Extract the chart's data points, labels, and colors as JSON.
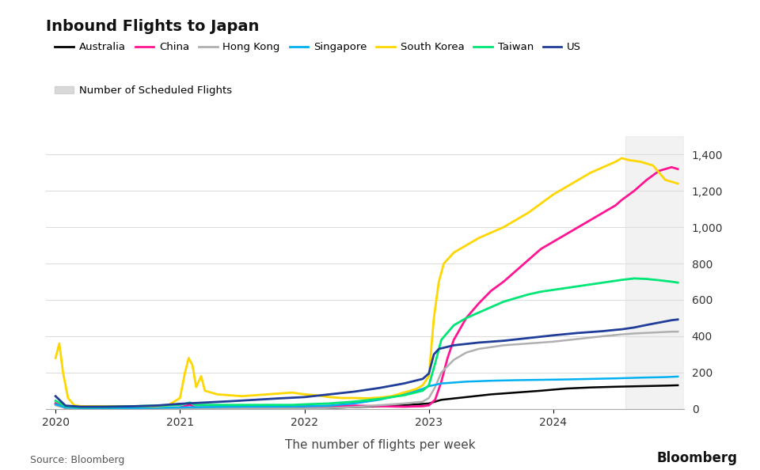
{
  "title": "Inbound Flights to Japan",
  "xlabel": "The number of flights per week",
  "ylim": [
    0,
    1500
  ],
  "yticks": [
    0,
    200,
    400,
    600,
    800,
    1000,
    1200,
    1400
  ],
  "background_color": "#ffffff",
  "shaded_region_start": 2024.58,
  "shaded_region_end": 2025.05,
  "xlim_start": 2019.92,
  "xlim_end": 2025.05,
  "series": {
    "Australia": {
      "color": "#000000",
      "lw": 1.8,
      "data": [
        [
          2020.0,
          30
        ],
        [
          2020.08,
          5
        ],
        [
          2020.15,
          2
        ],
        [
          2020.3,
          2
        ],
        [
          2020.5,
          2
        ],
        [
          2020.7,
          2
        ],
        [
          2020.9,
          2
        ],
        [
          2021.0,
          2
        ],
        [
          2021.2,
          2
        ],
        [
          2021.5,
          2
        ],
        [
          2021.8,
          2
        ],
        [
          2022.0,
          2
        ],
        [
          2022.2,
          5
        ],
        [
          2022.4,
          10
        ],
        [
          2022.6,
          15
        ],
        [
          2022.8,
          20
        ],
        [
          2023.0,
          30
        ],
        [
          2023.1,
          50
        ],
        [
          2023.3,
          65
        ],
        [
          2023.5,
          80
        ],
        [
          2023.7,
          90
        ],
        [
          2023.9,
          100
        ],
        [
          2024.1,
          112
        ],
        [
          2024.3,
          118
        ],
        [
          2024.5,
          122
        ],
        [
          2024.7,
          125
        ],
        [
          2024.9,
          128
        ],
        [
          2025.0,
          130
        ]
      ]
    },
    "China": {
      "color": "#ff1493",
      "lw": 2.0,
      "data": [
        [
          2020.0,
          30
        ],
        [
          2020.08,
          5
        ],
        [
          2020.2,
          3
        ],
        [
          2020.5,
          3
        ],
        [
          2020.8,
          5
        ],
        [
          2021.0,
          8
        ],
        [
          2021.08,
          22
        ],
        [
          2021.12,
          8
        ],
        [
          2021.3,
          8
        ],
        [
          2021.5,
          10
        ],
        [
          2021.8,
          12
        ],
        [
          2022.0,
          14
        ],
        [
          2022.2,
          16
        ],
        [
          2022.4,
          18
        ],
        [
          2022.6,
          15
        ],
        [
          2022.8,
          12
        ],
        [
          2022.95,
          15
        ],
        [
          2023.0,
          20
        ],
        [
          2023.05,
          50
        ],
        [
          2023.1,
          150
        ],
        [
          2023.15,
          280
        ],
        [
          2023.2,
          380
        ],
        [
          2023.3,
          500
        ],
        [
          2023.4,
          580
        ],
        [
          2023.5,
          650
        ],
        [
          2023.6,
          700
        ],
        [
          2023.7,
          760
        ],
        [
          2023.8,
          820
        ],
        [
          2023.9,
          880
        ],
        [
          2024.0,
          920
        ],
        [
          2024.1,
          960
        ],
        [
          2024.2,
          1000
        ],
        [
          2024.3,
          1040
        ],
        [
          2024.4,
          1080
        ],
        [
          2024.5,
          1120
        ],
        [
          2024.55,
          1150
        ],
        [
          2024.65,
          1200
        ],
        [
          2024.75,
          1260
        ],
        [
          2024.85,
          1310
        ],
        [
          2024.95,
          1330
        ],
        [
          2025.0,
          1320
        ]
      ]
    },
    "Hong Kong": {
      "color": "#b0b0b0",
      "lw": 1.8,
      "data": [
        [
          2020.0,
          20
        ],
        [
          2020.08,
          5
        ],
        [
          2020.2,
          2
        ],
        [
          2020.5,
          2
        ],
        [
          2020.8,
          2
        ],
        [
          2021.0,
          2
        ],
        [
          2021.3,
          2
        ],
        [
          2021.6,
          2
        ],
        [
          2022.0,
          2
        ],
        [
          2022.2,
          5
        ],
        [
          2022.4,
          10
        ],
        [
          2022.6,
          20
        ],
        [
          2022.8,
          30
        ],
        [
          2022.95,
          40
        ],
        [
          2023.0,
          60
        ],
        [
          2023.05,
          120
        ],
        [
          2023.1,
          200
        ],
        [
          2023.2,
          270
        ],
        [
          2023.3,
          310
        ],
        [
          2023.4,
          330
        ],
        [
          2023.6,
          350
        ],
        [
          2023.8,
          360
        ],
        [
          2024.0,
          370
        ],
        [
          2024.2,
          385
        ],
        [
          2024.4,
          400
        ],
        [
          2024.55,
          410
        ],
        [
          2024.65,
          415
        ],
        [
          2024.8,
          420
        ],
        [
          2024.95,
          425
        ],
        [
          2025.0,
          425
        ]
      ]
    },
    "Singapore": {
      "color": "#00b0f0",
      "lw": 1.8,
      "data": [
        [
          2020.0,
          25
        ],
        [
          2020.08,
          8
        ],
        [
          2020.2,
          5
        ],
        [
          2020.5,
          5
        ],
        [
          2020.8,
          6
        ],
        [
          2021.0,
          8
        ],
        [
          2021.2,
          10
        ],
        [
          2021.4,
          12
        ],
        [
          2021.6,
          13
        ],
        [
          2021.8,
          13
        ],
        [
          2022.0,
          14
        ],
        [
          2022.2,
          18
        ],
        [
          2022.4,
          30
        ],
        [
          2022.6,
          50
        ],
        [
          2022.8,
          80
        ],
        [
          2022.95,
          110
        ],
        [
          2023.0,
          125
        ],
        [
          2023.1,
          140
        ],
        [
          2023.3,
          150
        ],
        [
          2023.5,
          155
        ],
        [
          2023.7,
          158
        ],
        [
          2023.9,
          160
        ],
        [
          2024.1,
          162
        ],
        [
          2024.3,
          165
        ],
        [
          2024.5,
          168
        ],
        [
          2024.7,
          172
        ],
        [
          2024.9,
          175
        ],
        [
          2025.0,
          178
        ]
      ]
    },
    "South Korea": {
      "color": "#ffd700",
      "lw": 2.0,
      "data": [
        [
          2020.0,
          280
        ],
        [
          2020.03,
          360
        ],
        [
          2020.06,
          200
        ],
        [
          2020.1,
          60
        ],
        [
          2020.15,
          20
        ],
        [
          2020.2,
          15
        ],
        [
          2020.4,
          15
        ],
        [
          2020.6,
          15
        ],
        [
          2020.8,
          15
        ],
        [
          2020.9,
          18
        ],
        [
          2021.0,
          60
        ],
        [
          2021.04,
          200
        ],
        [
          2021.07,
          280
        ],
        [
          2021.1,
          240
        ],
        [
          2021.13,
          120
        ],
        [
          2021.17,
          180
        ],
        [
          2021.2,
          100
        ],
        [
          2021.3,
          80
        ],
        [
          2021.5,
          70
        ],
        [
          2021.7,
          80
        ],
        [
          2021.9,
          90
        ],
        [
          2022.0,
          80
        ],
        [
          2022.1,
          75
        ],
        [
          2022.2,
          65
        ],
        [
          2022.3,
          60
        ],
        [
          2022.4,
          60
        ],
        [
          2022.5,
          58
        ],
        [
          2022.6,
          62
        ],
        [
          2022.7,
          70
        ],
        [
          2022.8,
          90
        ],
        [
          2022.9,
          110
        ],
        [
          2022.95,
          130
        ],
        [
          2023.0,
          180
        ],
        [
          2023.04,
          500
        ],
        [
          2023.08,
          700
        ],
        [
          2023.12,
          800
        ],
        [
          2023.2,
          860
        ],
        [
          2023.3,
          900
        ],
        [
          2023.4,
          940
        ],
        [
          2023.5,
          970
        ],
        [
          2023.6,
          1000
        ],
        [
          2023.7,
          1040
        ],
        [
          2023.8,
          1080
        ],
        [
          2023.9,
          1130
        ],
        [
          2024.0,
          1180
        ],
        [
          2024.1,
          1220
        ],
        [
          2024.2,
          1260
        ],
        [
          2024.3,
          1300
        ],
        [
          2024.4,
          1330
        ],
        [
          2024.5,
          1360
        ],
        [
          2024.55,
          1380
        ],
        [
          2024.6,
          1370
        ],
        [
          2024.7,
          1360
        ],
        [
          2024.8,
          1340
        ],
        [
          2024.9,
          1260
        ],
        [
          2025.0,
          1240
        ]
      ]
    },
    "Taiwan": {
      "color": "#00e676",
      "lw": 2.0,
      "data": [
        [
          2020.0,
          45
        ],
        [
          2020.08,
          15
        ],
        [
          2020.2,
          10
        ],
        [
          2020.5,
          12
        ],
        [
          2020.8,
          18
        ],
        [
          2021.0,
          22
        ],
        [
          2021.08,
          35
        ],
        [
          2021.12,
          22
        ],
        [
          2021.3,
          22
        ],
        [
          2021.5,
          22
        ],
        [
          2021.7,
          22
        ],
        [
          2021.9,
          22
        ],
        [
          2022.0,
          25
        ],
        [
          2022.2,
          30
        ],
        [
          2022.4,
          40
        ],
        [
          2022.6,
          55
        ],
        [
          2022.8,
          75
        ],
        [
          2022.95,
          100
        ],
        [
          2023.0,
          130
        ],
        [
          2023.05,
          250
        ],
        [
          2023.1,
          380
        ],
        [
          2023.2,
          460
        ],
        [
          2023.3,
          500
        ],
        [
          2023.4,
          530
        ],
        [
          2023.5,
          560
        ],
        [
          2023.6,
          590
        ],
        [
          2023.7,
          610
        ],
        [
          2023.8,
          630
        ],
        [
          2023.9,
          645
        ],
        [
          2024.0,
          655
        ],
        [
          2024.1,
          665
        ],
        [
          2024.2,
          675
        ],
        [
          2024.3,
          685
        ],
        [
          2024.4,
          695
        ],
        [
          2024.5,
          705
        ],
        [
          2024.55,
          710
        ],
        [
          2024.65,
          718
        ],
        [
          2024.75,
          715
        ],
        [
          2024.85,
          708
        ],
        [
          2024.95,
          700
        ],
        [
          2025.0,
          695
        ]
      ]
    },
    "US": {
      "color": "#1f3d99",
      "lw": 2.0,
      "data": [
        [
          2020.0,
          70
        ],
        [
          2020.08,
          18
        ],
        [
          2020.2,
          12
        ],
        [
          2020.4,
          12
        ],
        [
          2020.6,
          14
        ],
        [
          2020.8,
          18
        ],
        [
          2021.0,
          28
        ],
        [
          2021.2,
          35
        ],
        [
          2021.4,
          42
        ],
        [
          2021.6,
          50
        ],
        [
          2021.8,
          58
        ],
        [
          2022.0,
          65
        ],
        [
          2022.2,
          80
        ],
        [
          2022.4,
          95
        ],
        [
          2022.6,
          115
        ],
        [
          2022.8,
          140
        ],
        [
          2022.95,
          165
        ],
        [
          2023.0,
          195
        ],
        [
          2023.04,
          300
        ],
        [
          2023.08,
          330
        ],
        [
          2023.2,
          350
        ],
        [
          2023.4,
          365
        ],
        [
          2023.6,
          375
        ],
        [
          2023.8,
          390
        ],
        [
          2024.0,
          405
        ],
        [
          2024.2,
          418
        ],
        [
          2024.4,
          428
        ],
        [
          2024.5,
          435
        ],
        [
          2024.55,
          438
        ],
        [
          2024.65,
          448
        ],
        [
          2024.75,
          462
        ],
        [
          2024.85,
          475
        ],
        [
          2024.95,
          488
        ],
        [
          2025.0,
          492
        ]
      ]
    }
  }
}
